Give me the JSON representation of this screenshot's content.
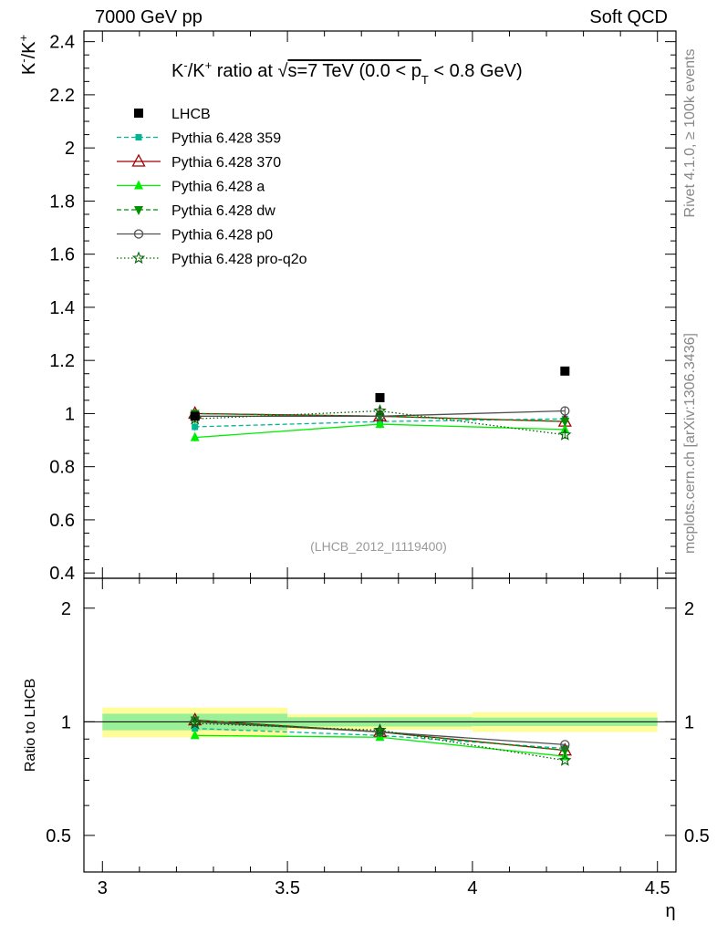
{
  "header": {
    "left": "7000 GeV pp",
    "right": "Soft QCD"
  },
  "side": {
    "rivet": "Rivet 4.1.0, ≥ 100k events",
    "mcplots": "mcplots.cern.ch [arXiv:1306.3436]"
  },
  "chart_data": {
    "type": "scatter",
    "title": "K⁻/K⁺ ratio at √s=7 TeV (0.0 < pT < 0.8 GeV)",
    "title_parts": [
      "K",
      "-",
      "/K",
      "+",
      " ratio at ",
      "s=7 TeV (0.0 < p",
      "T",
      " < 0.8 GeV)"
    ],
    "ylabel_parts": [
      "K",
      "-",
      "/K",
      "+"
    ],
    "xlabel": "η",
    "analysis_label": "(LHCB_2012_I1119400)",
    "ratio_ylabel": "Ratio to LHCB",
    "xlim": [
      2.95,
      4.55
    ],
    "ylim": [
      0.38,
      2.44
    ],
    "ratio_ylim": [
      0.4,
      2.4
    ],
    "xticks": [
      3,
      3.5,
      4,
      4.5
    ],
    "xtick_labels": [
      "3",
      "3.5",
      "4",
      "4.5"
    ],
    "yticks": [
      0.4,
      0.6,
      0.8,
      1,
      1.2,
      1.4,
      1.6,
      1.8,
      2,
      2.2,
      2.4
    ],
    "ytick_labels": [
      "0.4",
      "0.6",
      "0.8",
      "1",
      "1.2",
      "1.4",
      "1.6",
      "1.8",
      "2",
      "2.2",
      "2.4"
    ],
    "ratio_yticks": [
      0.5,
      1,
      2
    ],
    "ratio_ytick_labels": [
      "0.5",
      "1",
      "2"
    ],
    "x": [
      3.25,
      3.75,
      4.25
    ],
    "bin_edges": [
      3.0,
      3.5,
      4.0,
      4.5
    ],
    "data": {
      "name": "LHCB",
      "values": [
        0.99,
        1.06,
        1.16
      ],
      "err_inner": [
        0.05,
        0.03,
        0.03
      ],
      "err_outer": [
        0.09,
        0.05,
        0.07
      ]
    },
    "series": [
      {
        "name": "Pythia 6.428 359",
        "color": "#00b890",
        "dash": "5,3",
        "marker": "square-small",
        "values": [
          0.95,
          0.97,
          0.98
        ],
        "ratio": [
          0.96,
          0.92,
          0.85
        ]
      },
      {
        "name": "Pythia 6.428 370",
        "color": "#a00000",
        "dash": "",
        "marker": "triangle-open",
        "values": [
          1.0,
          0.99,
          0.97
        ],
        "ratio": [
          1.01,
          0.94,
          0.84
        ]
      },
      {
        "name": "Pythia 6.428 a",
        "color": "#00ee00",
        "dash": "",
        "marker": "triangle-filled",
        "values": [
          0.91,
          0.96,
          0.94
        ],
        "ratio": [
          0.92,
          0.91,
          0.81
        ]
      },
      {
        "name": "Pythia 6.428 dw",
        "color": "#009000",
        "dash": "5,3",
        "marker": "triangle-down",
        "values": [
          1.0,
          0.99,
          0.97
        ],
        "ratio": [
          1.01,
          0.94,
          0.84
        ]
      },
      {
        "name": "Pythia 6.428 p0",
        "color": "#505050",
        "dash": "",
        "marker": "circle-open",
        "values": [
          0.99,
          0.99,
          1.01
        ],
        "ratio": [
          1.0,
          0.94,
          0.87
        ]
      },
      {
        "name": "Pythia 6.428 pro-q2o",
        "color": "#006000",
        "dash": "1.5,2.5",
        "marker": "star",
        "values": [
          0.98,
          1.01,
          0.92
        ],
        "ratio": [
          0.99,
          0.95,
          0.79
        ]
      }
    ]
  }
}
